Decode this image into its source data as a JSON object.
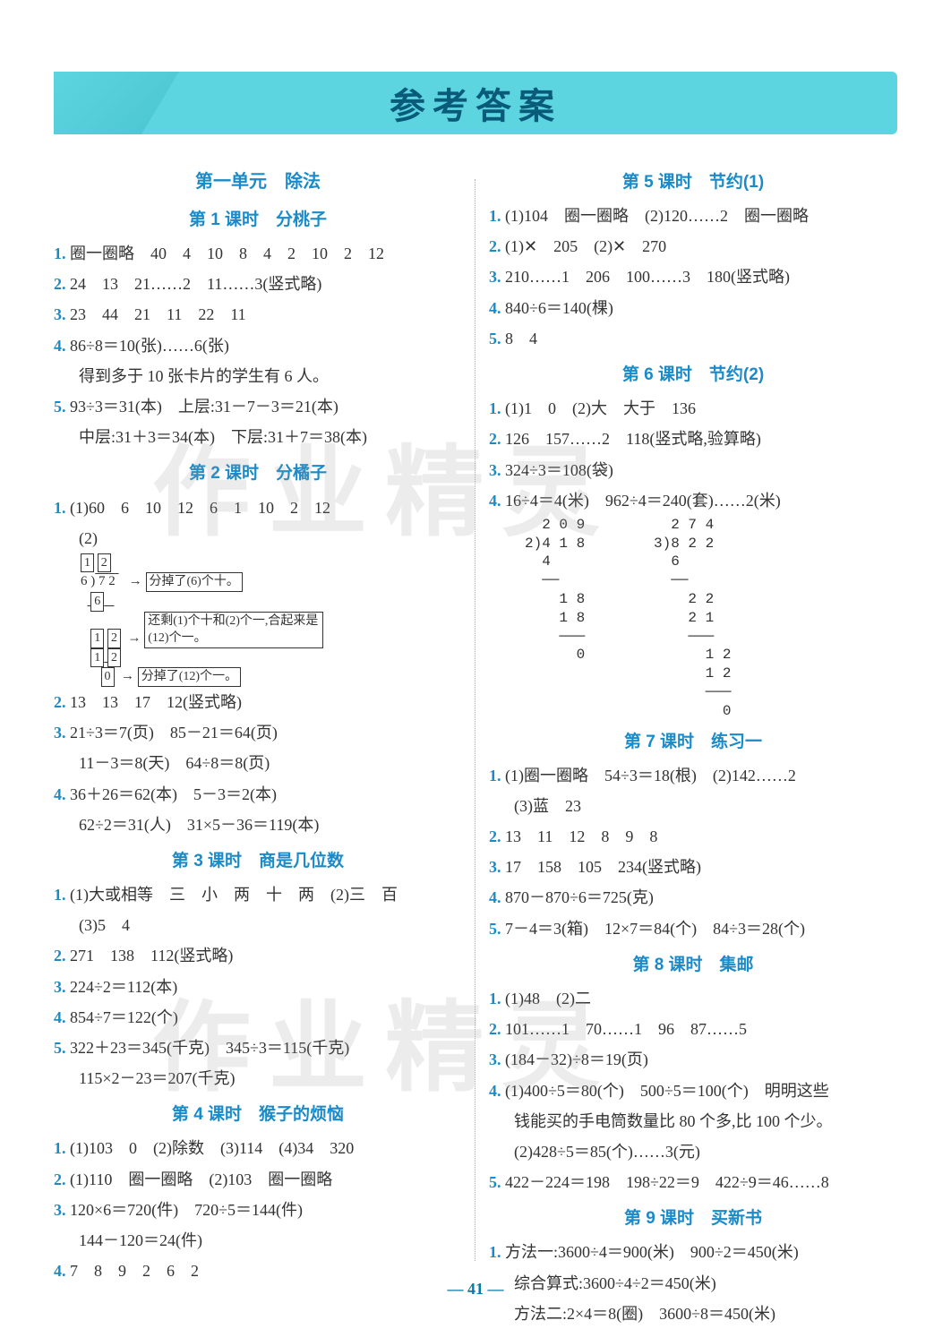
{
  "header": {
    "title": "参考答案"
  },
  "page_number": "— 41 —",
  "watermark": "作业精灵",
  "left": {
    "unit_title": "第一单元　除法",
    "lessons": [
      {
        "title": "第 1 课时　分桃子",
        "items": [
          {
            "n": "1.",
            "text": "圈一圈略　40　4　10　8　4　2　10　2　12"
          },
          {
            "n": "2.",
            "text": "24　13　21……2　11……3(竖式略)"
          },
          {
            "n": "3.",
            "text": "23　44　21　11　22　11"
          },
          {
            "n": "4.",
            "text": "86÷8＝10(张)……6(张)"
          },
          {
            "n": "",
            "text": "得到多于 10 张卡片的学生有 6 人。",
            "indent": true
          },
          {
            "n": "5.",
            "text": "93÷3＝31(本)　上层:31－7－3＝21(本)"
          },
          {
            "n": "",
            "text": "中层:31＋3＝34(本)　下层:31＋7＝38(本)",
            "indent": true
          }
        ]
      },
      {
        "title": "第 2 课时　分橘子",
        "items": [
          {
            "n": "1.",
            "text": "(1)60　6　10　12　6　1　10　2　12"
          },
          {
            "n": "",
            "text": "(2)",
            "indent": true
          }
        ],
        "diagram": {
          "cells": [
            "1",
            "2",
            "7",
            "2",
            "6",
            "1",
            "2",
            "1",
            "2",
            "0"
          ],
          "notes": [
            "分掉了(6)个十。",
            "还剩(1)个十和(2)个一,合起来是(12)个一。",
            "分掉了(12)个一。"
          ]
        },
        "items2": [
          {
            "n": "2.",
            "text": "13　13　17　12(竖式略)"
          },
          {
            "n": "3.",
            "text": "21÷3＝7(页)　85－21＝64(页)"
          },
          {
            "n": "",
            "text": "11－3＝8(天)　64÷8＝8(页)",
            "indent": true
          },
          {
            "n": "4.",
            "text": "36＋26＝62(本)　5－3＝2(本)"
          },
          {
            "n": "",
            "text": "62÷2＝31(人)　31×5－36＝119(本)",
            "indent": true
          }
        ]
      },
      {
        "title": "第 3 课时　商是几位数",
        "items": [
          {
            "n": "1.",
            "text": "(1)大或相等　三　小　两　十　两　(2)三　百"
          },
          {
            "n": "",
            "text": "(3)5　4",
            "indent": true
          },
          {
            "n": "2.",
            "text": "271　138　112(竖式略)"
          },
          {
            "n": "3.",
            "text": "224÷2＝112(本)"
          },
          {
            "n": "4.",
            "text": "854÷7＝122(个)"
          },
          {
            "n": "5.",
            "text": "322＋23＝345(千克)　345÷3＝115(千克)"
          },
          {
            "n": "",
            "text": "115×2－23＝207(千克)",
            "indent": true
          }
        ]
      },
      {
        "title": "第 4 课时　猴子的烦恼",
        "items": [
          {
            "n": "1.",
            "text": "(1)103　0　(2)除数　(3)114　(4)34　320"
          },
          {
            "n": "2.",
            "text": "(1)110　圈一圈略　(2)103　圈一圈略"
          },
          {
            "n": "3.",
            "text": "120×6＝720(件)　720÷5＝144(件)"
          },
          {
            "n": "",
            "text": "144－120＝24(件)",
            "indent": true
          },
          {
            "n": "4.",
            "text": "7　8　9　2　6　2"
          }
        ]
      }
    ]
  },
  "right": {
    "lessons": [
      {
        "title": "第 5 课时　节约(1)",
        "items": [
          {
            "n": "1.",
            "text": "(1)104　圈一圈略　(2)120……2　圈一圈略"
          },
          {
            "n": "2.",
            "text": "(1)✕　205　(2)✕　270"
          },
          {
            "n": "3.",
            "text": "210……1　206　100……3　180(竖式略)"
          },
          {
            "n": "4.",
            "text": "840÷6＝140(棵)"
          },
          {
            "n": "5.",
            "text": "8　4"
          }
        ]
      },
      {
        "title": "第 6 课时　节约(2)",
        "items": [
          {
            "n": "1.",
            "text": "(1)1　0　(2)大　大于　136"
          },
          {
            "n": "2.",
            "text": "126　157……2　118(竖式略,验算略)"
          },
          {
            "n": "3.",
            "text": "324÷3＝108(袋)"
          },
          {
            "n": "4.",
            "text": "16÷4＝4(米)　962÷4＝240(套)……2(米)"
          }
        ],
        "division": [
          "  2 0 9          2 7 4",
          "2)4 1 8        3)8 2 2",
          "  4              6",
          "  ──             ──",
          "    1 8            2 2",
          "    1 8            2 1",
          "    ───            ───",
          "      0              1 2",
          "                     1 2",
          "                     ───",
          "                       0"
        ]
      },
      {
        "title": "第 7 课时　练习一",
        "items": [
          {
            "n": "1.",
            "text": "(1)圈一圈略　54÷3＝18(根)　(2)142……2"
          },
          {
            "n": "",
            "text": "(3)蓝　23",
            "indent": true
          },
          {
            "n": "2.",
            "text": "13　11　12　8　9　8"
          },
          {
            "n": "3.",
            "text": "17　158　105　234(竖式略)"
          },
          {
            "n": "4.",
            "text": "870－870÷6＝725(克)"
          },
          {
            "n": "5.",
            "text": "7－4＝3(箱)　12×7＝84(个)　84÷3＝28(个)"
          }
        ]
      },
      {
        "title": "第 8 课时　集邮",
        "items": [
          {
            "n": "1.",
            "text": "(1)48　(2)二"
          },
          {
            "n": "2.",
            "text": "101……1　70……1　96　87……5"
          },
          {
            "n": "3.",
            "text": "(184－32)÷8＝19(页)"
          },
          {
            "n": "4.",
            "text": "(1)400÷5＝80(个)　500÷5＝100(个)　明明这些"
          },
          {
            "n": "",
            "text": "钱能买的手电筒数量比 80 个多,比 100 个少。",
            "indent": true
          },
          {
            "n": "",
            "text": "(2)428÷5＝85(个)……3(元)",
            "indent": true
          },
          {
            "n": "5.",
            "text": "422－224＝198　198÷22＝9　422÷9＝46……8"
          }
        ]
      },
      {
        "title": "第 9 课时　买新书",
        "items": [
          {
            "n": "1.",
            "text": "方法一:3600÷4＝900(米)　900÷2＝450(米)"
          },
          {
            "n": "",
            "text": "综合算式:3600÷4÷2＝450(米)",
            "indent": true
          },
          {
            "n": "",
            "text": "方法二:2×4＝8(圈)　3600÷8＝450(米)",
            "indent": true
          }
        ]
      }
    ]
  }
}
